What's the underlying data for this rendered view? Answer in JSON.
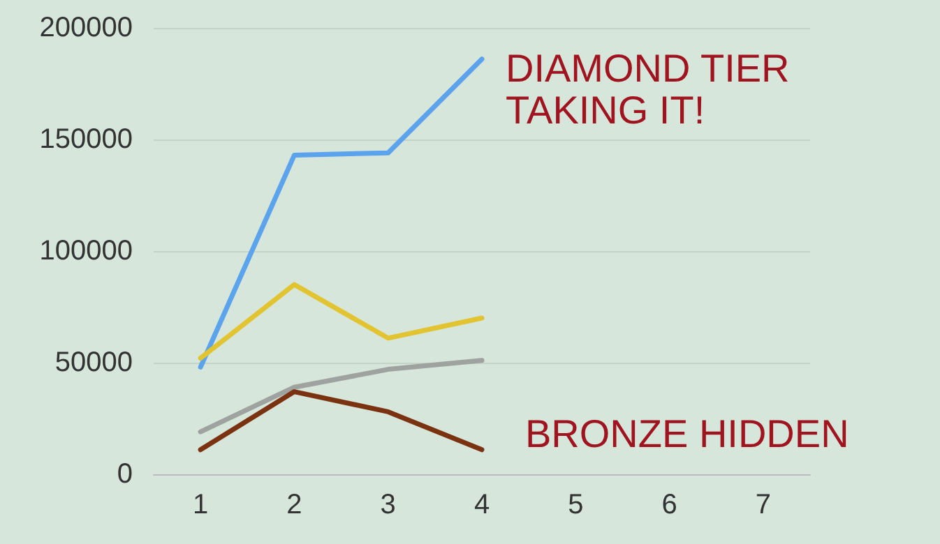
{
  "chart_data": {
    "type": "line",
    "categories": [
      "1",
      "2",
      "3",
      "4",
      "5",
      "6",
      "7"
    ],
    "series": [
      {
        "color": "#5ba3ec",
        "values": [
          48000,
          143000,
          144000,
          186000,
          null,
          null,
          null
        ]
      },
      {
        "color": "#e2c431",
        "values": [
          52000,
          85000,
          61000,
          70000,
          null,
          null,
          null
        ]
      },
      {
        "color": "#9ea3a0",
        "values": [
          19000,
          39000,
          47000,
          51000,
          null,
          null,
          null
        ]
      },
      {
        "color": "#7a3210",
        "values": [
          11000,
          37000,
          28000,
          11000,
          null,
          null,
          null
        ]
      }
    ],
    "ylim": [
      0,
      200000
    ],
    "yticks": [
      0,
      50000,
      100000,
      150000,
      200000
    ],
    "grid": "y",
    "marker": "none",
    "line_style": "solid",
    "annotations": [
      "DIAMOND TIER TAKING IT!",
      "BRONZE HIDDEN"
    ]
  }
}
